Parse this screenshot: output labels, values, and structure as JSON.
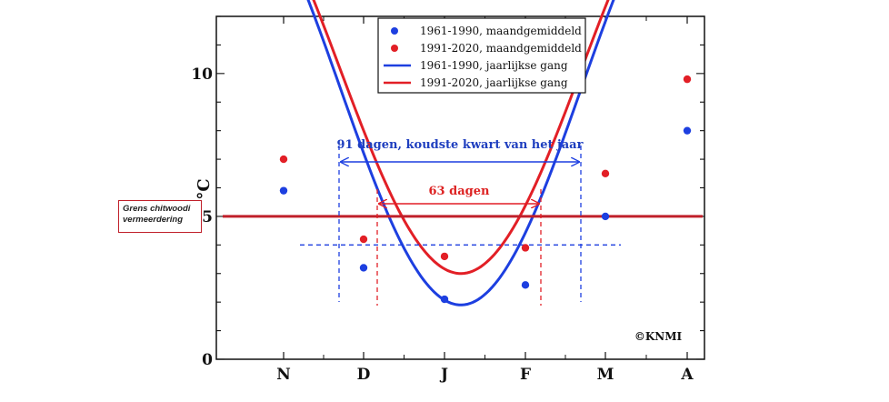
{
  "chart_data": {
    "type": "line",
    "x_categories": [
      "N",
      "D",
      "J",
      "F",
      "M",
      "A"
    ],
    "ylabel_unit": "°C",
    "ylim": [
      0,
      12
    ],
    "y_ticks": [
      "0",
      "5",
      "10"
    ],
    "grid": false,
    "series": [
      {
        "name": "1961-1990, maandgemiddeld",
        "kind": "scatter",
        "color": "#1d3fe0",
        "points": [
          [
            "N",
            5.9
          ],
          [
            "D",
            3.2
          ],
          [
            "J",
            2.1
          ],
          [
            "F",
            2.6
          ],
          [
            "M",
            5.0
          ],
          [
            "A",
            8.0
          ]
        ]
      },
      {
        "name": "1991-2020, maandgemiddeld",
        "kind": "scatter",
        "color": "#e21f26",
        "points": [
          [
            "N",
            7.0
          ],
          [
            "D",
            4.2
          ],
          [
            "J",
            3.6
          ],
          [
            "F",
            3.9
          ],
          [
            "M",
            6.5
          ],
          [
            "A",
            9.8
          ]
        ]
      },
      {
        "name": "1961-1990, jaarlijkse gang",
        "kind": "line",
        "color": "#1d3fe0",
        "min_value": 1.9
      },
      {
        "name": "1991-2020, jaarlijkse gang",
        "kind": "line",
        "color": "#e21f26",
        "min_value": 3.0
      }
    ],
    "threshold": {
      "value": 5,
      "color": "#c0202a",
      "label_line1": "Grens chitwoodi",
      "label_line2": "vermeerdering"
    },
    "annotations": {
      "blue_span": {
        "text": "91 dagen, koudste kwart van het jaar",
        "color": "#1d3fe0"
      },
      "red_span": {
        "text": "63 dagen",
        "color": "#e21f26"
      },
      "blue_dashed_level": 4.0
    },
    "legend_position": "top-center",
    "copyright": "©KNMI"
  }
}
